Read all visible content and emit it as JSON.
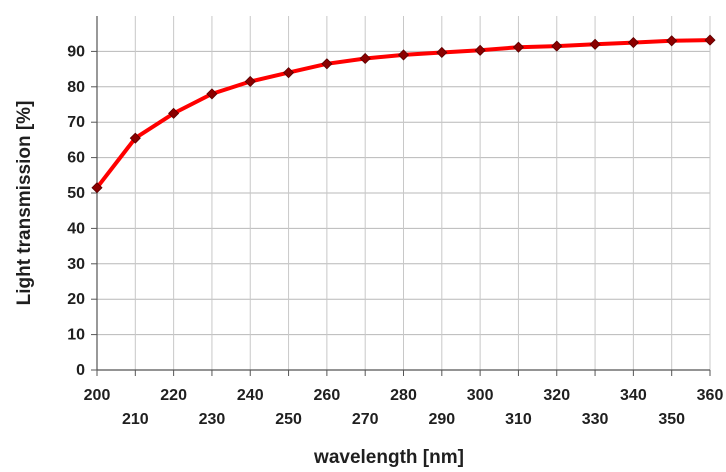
{
  "chart_data": {
    "type": "line",
    "title": "",
    "xlabel": "wavelength [nm]",
    "ylabel": "Light transmission  [%]",
    "xlim": [
      200,
      360
    ],
    "ylim": [
      0,
      100
    ],
    "grid": true,
    "legend": "none",
    "x_tick_labels_row1": [
      "200",
      "220",
      "240",
      "260",
      "280",
      "300",
      "320",
      "340",
      "360"
    ],
    "x_tick_labels_row2": [
      "210",
      "230",
      "250",
      "270",
      "290",
      "310",
      "330",
      "350"
    ],
    "y_tick_labels": [
      "0",
      "10",
      "20",
      "30",
      "40",
      "50",
      "60",
      "70",
      "80",
      "90"
    ],
    "series": [
      {
        "x": [
          200,
          210,
          220,
          230,
          240,
          250,
          260,
          270,
          280,
          290,
          300,
          310,
          320,
          330,
          340,
          350,
          360
        ],
        "values": [
          51.5,
          65.5,
          72.5,
          78,
          81.5,
          84,
          86.5,
          88,
          89,
          89.7,
          90.3,
          91.2,
          91.5,
          92,
          92.5,
          93,
          93.2
        ],
        "color": "#ff0000",
        "marker_color": "#8b0000"
      }
    ]
  }
}
